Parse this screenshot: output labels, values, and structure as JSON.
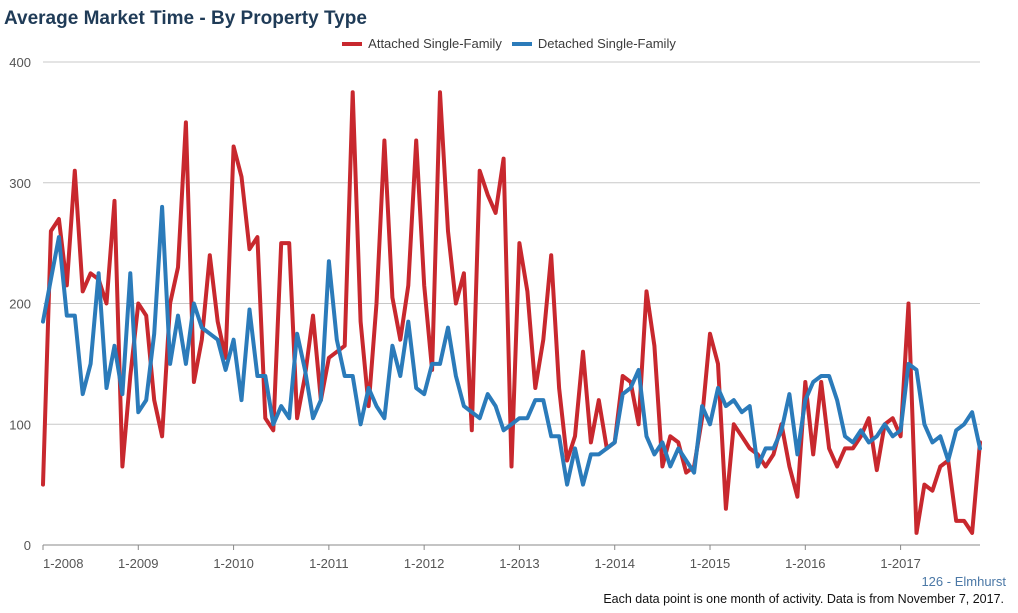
{
  "chart_data": {
    "type": "line",
    "title": "Average Market Time - By Property Type",
    "xlabel": "",
    "ylabel": "",
    "ylim": [
      0,
      400
    ],
    "yticks": [
      0,
      100,
      200,
      300,
      400
    ],
    "grid": true,
    "legend_position": "top-center",
    "x_tick_labels": [
      "1-2008",
      "1-2009",
      "1-2010",
      "1-2011",
      "1-2012",
      "1-2013",
      "1-2014",
      "1-2015",
      "1-2016",
      "1-2017"
    ],
    "x_start": "1-2008",
    "x_interval": "month",
    "series": [
      {
        "name": "Attached Single-Family",
        "color": "#c8282e",
        "values": [
          50,
          260,
          270,
          215,
          310,
          210,
          225,
          220,
          200,
          285,
          65,
          140,
          200,
          190,
          120,
          90,
          200,
          230,
          350,
          135,
          170,
          240,
          185,
          155,
          330,
          305,
          245,
          255,
          105,
          95,
          250,
          250,
          105,
          140,
          190,
          120,
          155,
          160,
          165,
          375,
          185,
          115,
          200,
          335,
          205,
          170,
          215,
          335,
          215,
          145,
          375,
          260,
          200,
          225,
          95,
          310,
          290,
          275,
          320,
          65,
          250,
          210,
          130,
          170,
          240,
          130,
          70,
          90,
          160,
          85,
          120,
          80,
          85,
          140,
          135,
          100,
          210,
          165,
          65,
          90,
          85,
          60,
          65,
          105,
          175,
          150,
          30,
          100,
          90,
          80,
          75,
          65,
          75,
          100,
          65,
          40,
          135,
          75,
          135,
          80,
          65,
          80,
          80,
          90,
          105,
          62,
          100,
          105,
          90,
          200,
          10,
          50,
          45,
          65,
          70,
          20,
          20,
          10,
          85
        ]
      },
      {
        "name": "Detached Single-Family",
        "color": "#2b7bba",
        "values": [
          185,
          220,
          255,
          190,
          190,
          125,
          150,
          225,
          130,
          165,
          125,
          225,
          110,
          120,
          175,
          280,
          150,
          190,
          150,
          200,
          180,
          175,
          170,
          145,
          170,
          120,
          195,
          140,
          140,
          100,
          115,
          105,
          175,
          145,
          105,
          120,
          235,
          170,
          140,
          140,
          100,
          130,
          115,
          105,
          165,
          140,
          185,
          130,
          125,
          150,
          150,
          180,
          140,
          115,
          110,
          105,
          125,
          115,
          95,
          100,
          105,
          105,
          120,
          120,
          90,
          90,
          50,
          80,
          50,
          75,
          75,
          80,
          85,
          125,
          130,
          145,
          90,
          75,
          85,
          65,
          80,
          70,
          60,
          115,
          100,
          130,
          115,
          120,
          110,
          115,
          65,
          80,
          80,
          95,
          125,
          75,
          120,
          135,
          140,
          140,
          120,
          90,
          85,
          95,
          85,
          90,
          100,
          90,
          95,
          150,
          145,
          100,
          85,
          90,
          70,
          95,
          100,
          110,
          80
        ]
      }
    ]
  },
  "footer": {
    "location": "126 - Elmhurst",
    "note": "Each data point is one month of activity. Data is from November 7, 2017."
  }
}
